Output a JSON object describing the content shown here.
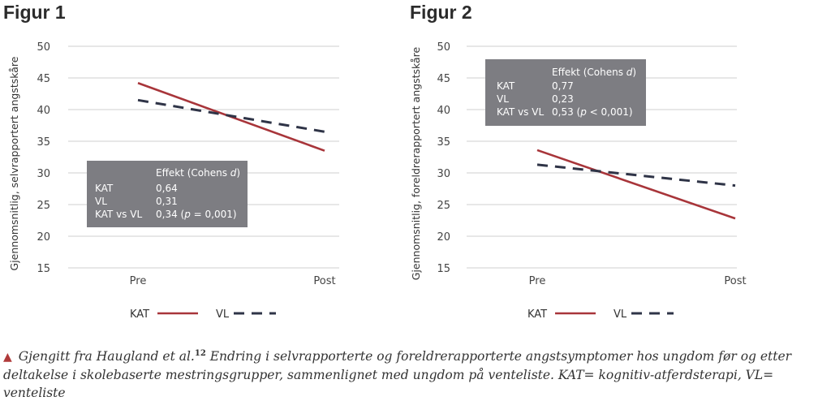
{
  "chart_data": [
    {
      "type": "line",
      "title": "Figur 1",
      "ylabel": "Gjennomsnitlig, selvrapportert angstskåre",
      "xlabel": "",
      "categories": [
        "Pre",
        "Post"
      ],
      "ylim": [
        15,
        50
      ],
      "yticks": [
        "50",
        "45",
        "40",
        "35",
        "30",
        "25",
        "20",
        "15"
      ],
      "series": [
        {
          "name": "KAT",
          "values": [
            44.2,
            33.5
          ],
          "color": "#a8353a",
          "dash": "solid"
        },
        {
          "name": "VL",
          "values": [
            41.5,
            36.5
          ],
          "color": "#2f3447",
          "dash": "dashed"
        }
      ],
      "effect_box": {
        "header": "Effekt (Cohens d)",
        "rows": [
          {
            "label": "KAT",
            "value": "0,64"
          },
          {
            "label": "VL",
            "value": "0,31"
          },
          {
            "label": "KAT vs VL",
            "value": "0,34 (p = 0,001)"
          }
        ]
      },
      "legend": "bottom"
    },
    {
      "type": "line",
      "title": "Figur 2",
      "ylabel": "Gjennomsnitlig, foreldrerapportert angstskåre",
      "xlabel": "",
      "categories": [
        "Pre",
        "Post"
      ],
      "ylim": [
        15,
        50
      ],
      "yticks": [
        "50",
        "45",
        "40",
        "35",
        "30",
        "25",
        "20",
        "15"
      ],
      "series": [
        {
          "name": "KAT",
          "values": [
            33.6,
            22.8
          ],
          "color": "#a8353a",
          "dash": "solid"
        },
        {
          "name": "VL",
          "values": [
            31.3,
            28.0
          ],
          "color": "#2f3447",
          "dash": "dashed"
        }
      ],
      "effect_box": {
        "header": "Effekt (Cohens d)",
        "rows": [
          {
            "label": "KAT",
            "value": "0,77"
          },
          {
            "label": "VL",
            "value": "0,23"
          },
          {
            "label": "KAT vs VL",
            "value": "0,53 (p < 0,001)"
          }
        ]
      },
      "legend": "bottom"
    }
  ],
  "caption": {
    "marker": "▲",
    "lead": "Gjengitt fra Haugland et al.",
    "ref": "12",
    "text": " Endring i selvrapporterte og foreldrerapporterte angstsymptomer hos ungdom før og etter deltakelse i skolebaserte mestringsgrupper, sammenlignet med ungdom på venteliste. KAT= kognitiv-atferdsterapi, VL= venteliste"
  },
  "colors": {
    "box_fill": "#7d7d82",
    "grid": "#cfcfcf",
    "kat": "#a8353a",
    "vl": "#2f3447"
  }
}
